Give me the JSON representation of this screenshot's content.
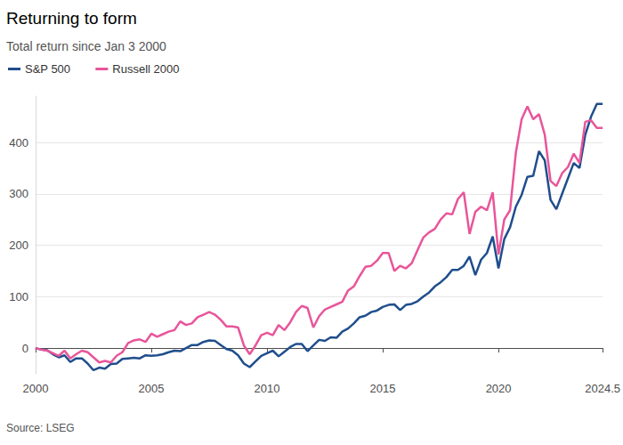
{
  "chart_data": {
    "type": "line",
    "title": "Returning to form",
    "subtitle": "Total return since Jan 3 2000",
    "source": "Source: LSEG",
    "legend": "top-left",
    "grid": true,
    "xlim": [
      2000,
      2024.5
    ],
    "xticks": [
      2000,
      2005,
      2010,
      2015,
      2020
    ],
    "ylim": [
      -50,
      490
    ],
    "yticks": [
      0,
      100,
      200,
      300,
      400
    ],
    "x": [
      2000,
      2000.25,
      2000.5,
      2000.75,
      2001,
      2001.25,
      2001.5,
      2001.75,
      2002,
      2002.25,
      2002.5,
      2002.75,
      2003,
      2003.25,
      2003.5,
      2003.75,
      2004,
      2004.25,
      2004.5,
      2004.75,
      2005,
      2005.25,
      2005.5,
      2005.75,
      2006,
      2006.25,
      2006.5,
      2006.75,
      2007,
      2007.25,
      2007.5,
      2007.75,
      2008,
      2008.25,
      2008.5,
      2008.75,
      2009,
      2009.25,
      2009.5,
      2009.75,
      2010,
      2010.25,
      2010.5,
      2010.75,
      2011,
      2011.25,
      2011.5,
      2011.75,
      2012,
      2012.25,
      2012.5,
      2012.75,
      2013,
      2013.25,
      2013.5,
      2013.75,
      2014,
      2014.25,
      2014.5,
      2014.75,
      2015,
      2015.25,
      2015.5,
      2015.75,
      2016,
      2016.25,
      2016.5,
      2016.75,
      2017,
      2017.25,
      2017.5,
      2017.75,
      2018,
      2018.25,
      2018.5,
      2018.75,
      2019,
      2019.25,
      2019.5,
      2019.75,
      2020,
      2020.25,
      2020.5,
      2020.75,
      2021,
      2021.25,
      2021.5,
      2021.75,
      2022,
      2022.25,
      2022.5,
      2022.75,
      2023,
      2023.25,
      2023.5,
      2023.75,
      2024,
      2024.25,
      2024.5
    ],
    "series": [
      {
        "name": "S&P 500",
        "color": "#1f4e8c",
        "values": [
          0,
          -3,
          -4,
          -12,
          -18,
          -14,
          -27,
          -20,
          -20,
          -30,
          -43,
          -38,
          -40,
          -31,
          -30,
          -21,
          -20,
          -19,
          -20,
          -14,
          -15,
          -14,
          -12,
          -8,
          -5,
          -6,
          0,
          6,
          6,
          12,
          15,
          14,
          6,
          -2,
          -5,
          -14,
          -30,
          -37,
          -26,
          -15,
          -10,
          -5,
          -16,
          -7,
          2,
          8,
          8,
          -6,
          5,
          16,
          14,
          21,
          20,
          32,
          38,
          48,
          60,
          63,
          70,
          73,
          80,
          84,
          85,
          74,
          84,
          86,
          91,
          100,
          108,
          120,
          128,
          138,
          152,
          152,
          160,
          178,
          142,
          172,
          185,
          217,
          155,
          212,
          235,
          275,
          298,
          333,
          335,
          383,
          365,
          288,
          270,
          300,
          330,
          360,
          350,
          415,
          450,
          475,
          475
        ]
      },
      {
        "name": "Russell 2000",
        "color": "#e8559a",
        "values": [
          0,
          -3,
          -5,
          -10,
          -15,
          -5,
          -20,
          -12,
          -5,
          -8,
          -18,
          -28,
          -25,
          -28,
          -15,
          -8,
          10,
          15,
          17,
          12,
          28,
          22,
          27,
          32,
          35,
          52,
          45,
          48,
          60,
          65,
          70,
          65,
          55,
          42,
          42,
          40,
          5,
          -12,
          5,
          25,
          30,
          25,
          45,
          35,
          50,
          70,
          82,
          78,
          40,
          62,
          75,
          80,
          85,
          90,
          112,
          120,
          140,
          158,
          160,
          170,
          185,
          185,
          150,
          160,
          155,
          165,
          190,
          215,
          225,
          232,
          250,
          262,
          260,
          290,
          303,
          222,
          265,
          275,
          268,
          303,
          182,
          250,
          268,
          380,
          445,
          470,
          445,
          455,
          415,
          325,
          315,
          340,
          352,
          378,
          360,
          440,
          443,
          428,
          428
        ]
      }
    ]
  }
}
